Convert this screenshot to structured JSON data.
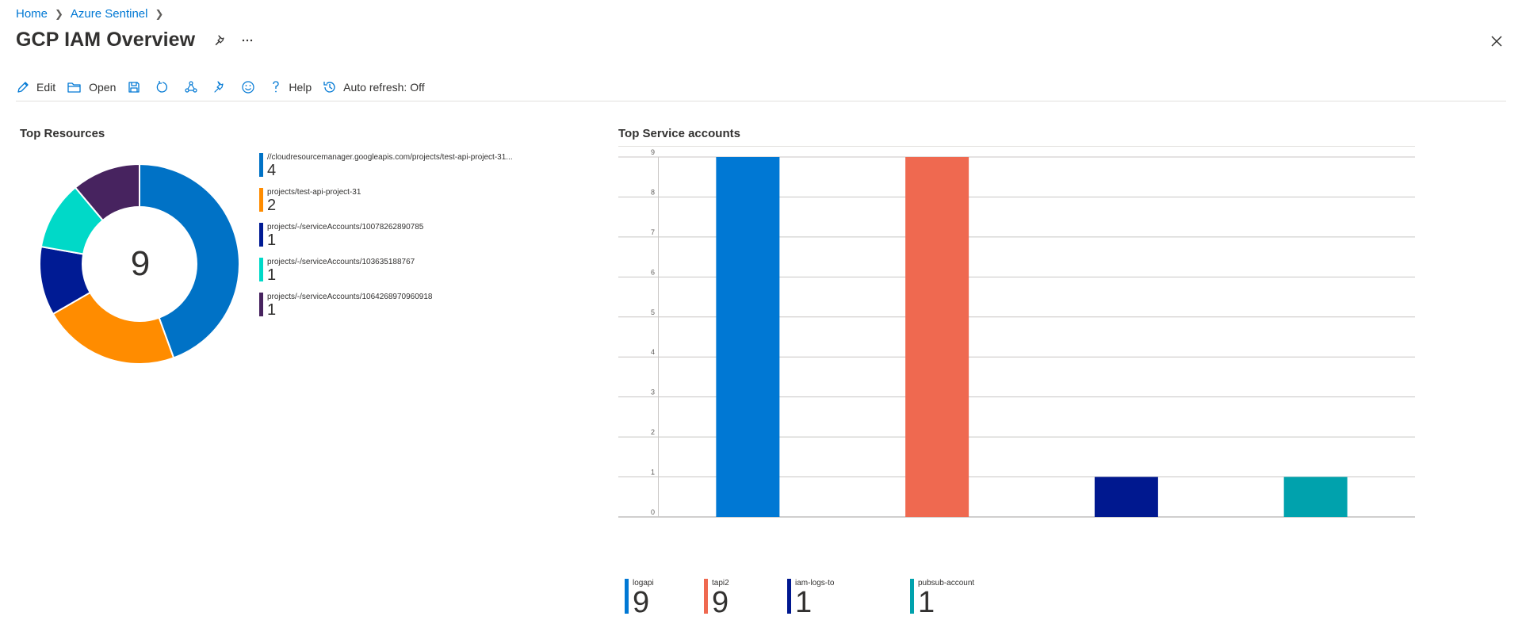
{
  "breadcrumb": {
    "home": "Home",
    "parent": "Azure Sentinel"
  },
  "page": {
    "title": "GCP IAM Overview"
  },
  "toolbar": {
    "edit": "Edit",
    "open": "Open",
    "help": "Help",
    "auto_refresh": "Auto refresh: Off",
    "icons": [
      "edit-icon",
      "open-folder-icon",
      "save-icon",
      "refresh-icon",
      "share-icon",
      "pin-icon",
      "feedback-smiley-icon",
      "help-icon",
      "auto-refresh-clock-icon"
    ]
  },
  "colors": {
    "accent": "#0078d4"
  },
  "top_resources": {
    "title": "Top Resources",
    "total": "9",
    "items": [
      {
        "label": "//cloudresourcemanager.googleapis.com/projects/test-api-project-31...",
        "value": "4",
        "color": "#0072c6"
      },
      {
        "label": "projects/test-api-project-31",
        "value": "2",
        "color": "#ff8c00"
      },
      {
        "label": "projects/-/serviceAccounts/10078262890785",
        "value": "1",
        "color": "#001b94"
      },
      {
        "label": "projects/-/serviceAccounts/103635188767",
        "value": "1",
        "color": "#00d9c8"
      },
      {
        "label": "projects/-/serviceAccounts/1064268970960918",
        "value": "1",
        "color": "#47235f"
      }
    ]
  },
  "top_service_accounts": {
    "title": "Top Service accounts",
    "items": [
      {
        "label": "logapi",
        "value": "9",
        "color": "#0078d4"
      },
      {
        "label": "tapi2",
        "value": "9",
        "color": "#ef6950"
      },
      {
        "label": "iam-logs-to",
        "value": "1",
        "color": "#00188f"
      },
      {
        "label": "pubsub-account",
        "value": "1",
        "color": "#00a2ad"
      }
    ]
  },
  "chart_data": [
    {
      "type": "pie",
      "title": "Top Resources",
      "categories": [
        "//cloudresourcemanager.googleapis.com/projects/test-api-project-31...",
        "projects/test-api-project-31",
        "projects/-/serviceAccounts/10078262890785",
        "projects/-/serviceAccounts/103635188767",
        "projects/-/serviceAccounts/1064268970960918"
      ],
      "values": [
        4,
        2,
        1,
        1,
        1
      ],
      "center_total": 9
    },
    {
      "type": "bar",
      "title": "Top Service accounts",
      "categories": [
        "logapi",
        "tapi2",
        "iam-logs-to",
        "pubsub-account"
      ],
      "values": [
        9,
        9,
        1,
        1
      ],
      "ylim": [
        0,
        9
      ],
      "yticks": [
        "0",
        "1",
        "2",
        "3",
        "4",
        "5",
        "6",
        "7",
        "8",
        "9"
      ],
      "grid": true
    }
  ]
}
